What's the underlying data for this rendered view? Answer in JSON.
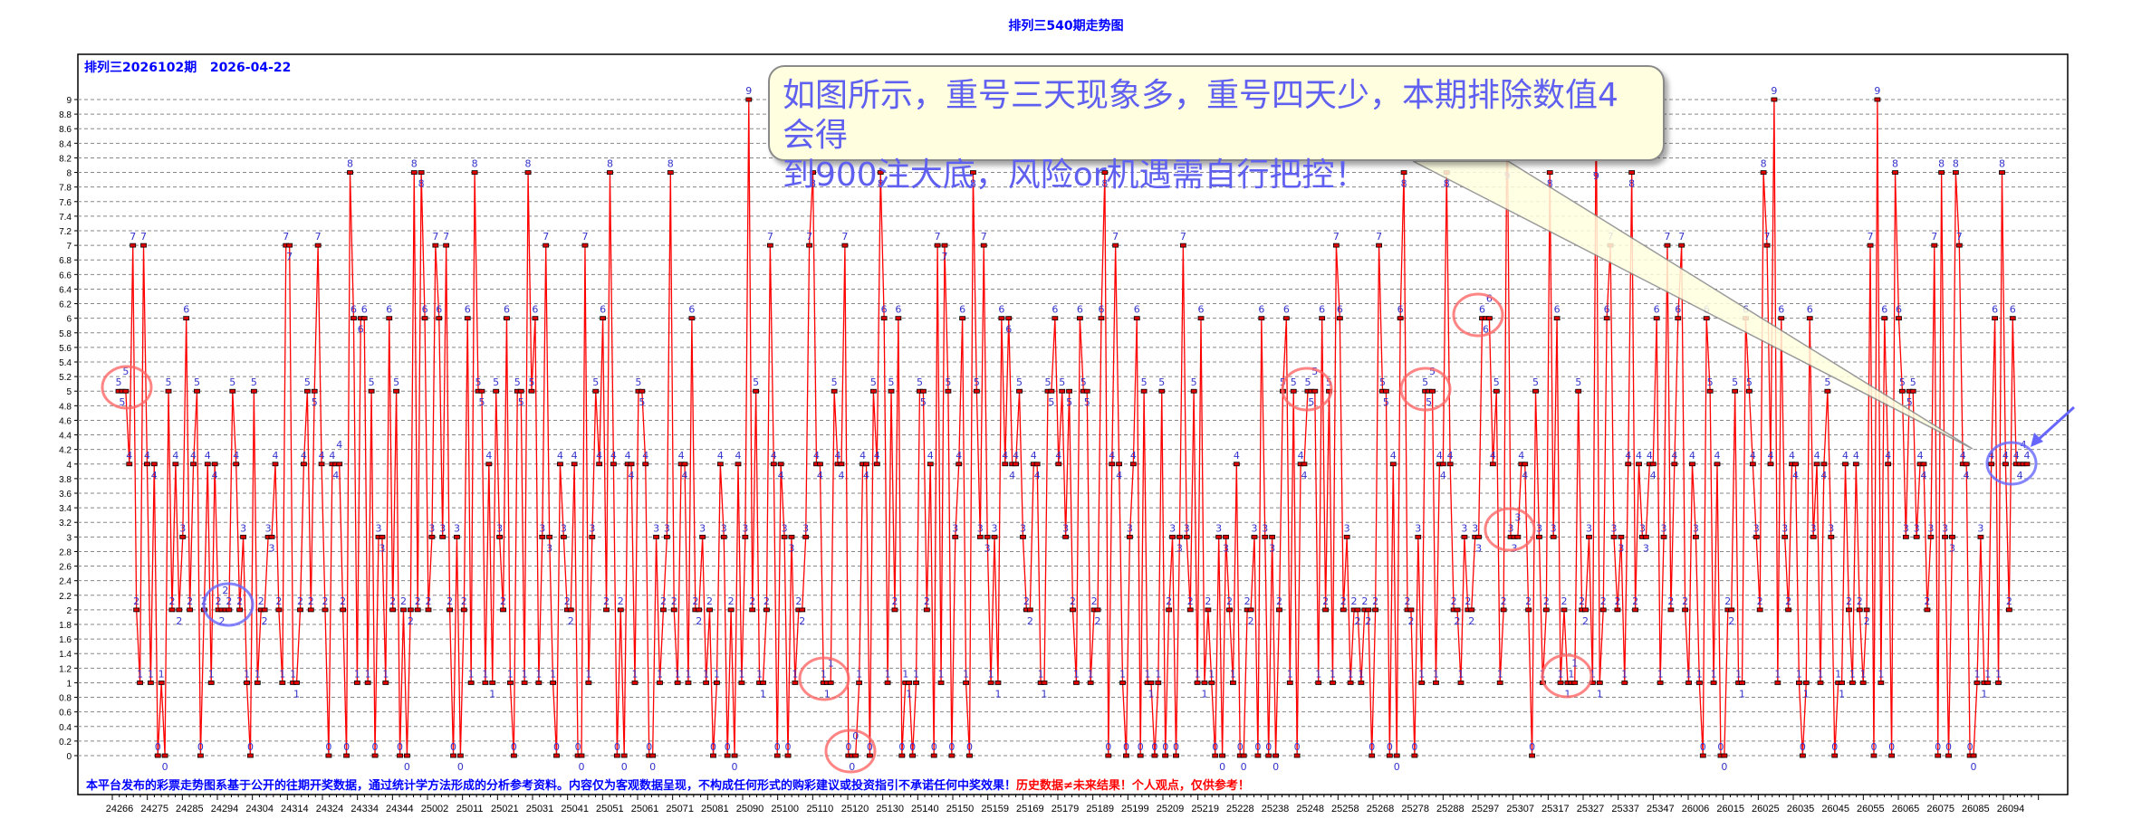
{
  "title": "排列三540期走势图",
  "header": {
    "issue": "排列三2026102期",
    "date": "2026-04-22"
  },
  "callout": {
    "text_line1": "如图所示，重号三天现象多，重号四天少，本期排除数值4会得",
    "text_line2": "到900注大底，风险or机遇需自行把控！"
  },
  "footnote": {
    "blue": "本平台发布的彩票走势图系基于公开的往期开奖数据，通过统计学方法形成的分析参考资料。内容仅为客观数据呈现，不构成任何形式的购彩建议或投资指引不承诺任何中奖效果！",
    "red": "历史数据≠未来结果！个人观点，仅供参考！"
  },
  "colors": {
    "line": "#ff0000",
    "marker": "#e00000",
    "label": "#3333cc",
    "title": "#0000ff",
    "grid": "#888888",
    "highlight_red": "#ff6666",
    "highlight_blue": "#6666ff"
  },
  "chart_data": {
    "type": "line",
    "title": "排列三540期走势图",
    "ylim": [
      0,
      9
    ],
    "y_ticks_step": 0.2,
    "grid": true,
    "point_labels": true,
    "x_tick_labels": [
      "24266",
      "24275",
      "24285",
      "24294",
      "24304",
      "24314",
      "24324",
      "24334",
      "24344",
      "25002",
      "25011",
      "25021",
      "25031",
      "25041",
      "25051",
      "25061",
      "25071",
      "25081",
      "25090",
      "25100",
      "25110",
      "25120",
      "25130",
      "25140",
      "25150",
      "25159",
      "25169",
      "25179",
      "25189",
      "25199",
      "25209",
      "25219",
      "25228",
      "25238",
      "25248",
      "25258",
      "25268",
      "25278",
      "25288",
      "25297",
      "25307",
      "25317",
      "25327",
      "25337",
      "25347",
      "26006",
      "26015",
      "26025",
      "26035",
      "26045",
      "26055",
      "26065",
      "26075",
      "26085",
      "26094"
    ],
    "values": [
      5,
      5,
      5,
      4,
      7,
      2,
      1,
      7,
      4,
      1,
      4,
      0,
      1,
      0,
      5,
      2,
      4,
      2,
      3,
      6,
      2,
      4,
      5,
      0,
      2,
      4,
      1,
      4,
      2,
      2,
      2,
      2,
      5,
      4,
      2,
      3,
      1,
      0,
      5,
      1,
      2,
      2,
      3,
      3,
      4,
      2,
      1,
      7,
      7,
      1,
      1,
      2,
      4,
      5,
      2,
      5,
      7,
      4,
      2,
      0,
      4,
      4,
      4,
      2,
      0,
      8,
      6,
      1,
      6,
      6,
      1,
      5,
      0,
      3,
      3,
      1,
      6,
      2,
      5,
      0,
      2,
      0,
      2,
      8,
      2,
      8,
      6,
      2,
      3,
      7,
      6,
      3,
      7,
      2,
      0,
      3,
      0,
      2,
      6,
      1,
      8,
      5,
      5,
      1,
      4,
      1,
      5,
      3,
      2,
      6,
      1,
      0,
      5,
      5,
      1,
      8,
      5,
      6,
      1,
      3,
      7,
      3,
      1,
      0,
      4,
      3,
      2,
      2,
      4,
      0,
      0,
      7,
      1,
      3,
      5,
      4,
      6,
      2,
      8,
      4,
      0,
      2,
      0,
      4,
      4,
      1,
      5,
      5,
      4,
      0,
      0,
      3,
      1,
      2,
      3,
      8,
      2,
      1,
      4,
      4,
      1,
      6,
      2,
      2,
      3,
      1,
      2,
      0,
      1,
      4,
      3,
      0,
      2,
      0,
      4,
      1,
      3,
      9,
      2,
      5,
      1,
      1,
      2,
      7,
      4,
      0,
      4,
      3,
      0,
      3,
      1,
      2,
      2,
      3,
      7,
      8,
      4,
      4,
      1,
      1,
      1,
      5,
      4,
      4,
      7,
      0,
      0,
      0,
      1,
      4,
      4,
      0,
      5,
      4,
      8,
      6,
      1,
      5,
      2,
      6,
      0,
      1,
      1,
      0,
      1,
      5,
      5,
      2,
      4,
      0,
      7,
      1,
      7,
      5,
      0,
      3,
      4,
      6,
      1,
      0,
      8,
      5,
      3,
      7,
      3,
      1,
      3,
      1,
      6,
      4,
      6,
      4,
      4,
      5,
      3,
      2,
      2,
      4,
      4,
      1,
      1,
      5,
      5,
      6,
      4,
      5,
      3,
      5,
      2,
      1,
      6,
      5,
      5,
      1,
      2,
      2,
      6,
      8,
      0,
      4,
      7,
      4,
      1,
      0,
      3,
      4,
      6,
      0,
      5,
      1,
      1,
      0,
      1,
      5,
      0,
      2,
      3,
      0,
      3,
      7,
      3,
      2,
      5,
      1,
      6,
      1,
      2,
      1,
      0,
      3,
      0,
      3,
      2,
      1,
      4,
      0,
      0,
      2,
      2,
      3,
      0,
      6,
      3,
      0,
      3,
      0,
      2,
      5,
      6,
      1,
      5,
      0,
      4,
      4,
      5,
      5,
      5,
      1,
      6,
      2,
      5,
      1,
      7,
      6,
      2,
      3,
      1,
      2,
      2,
      1,
      2,
      2,
      0,
      2,
      7,
      5,
      5,
      0,
      4,
      0,
      6,
      8,
      2,
      2,
      0,
      3,
      1,
      5,
      5,
      5,
      1,
      4,
      4,
      8,
      4,
      2,
      2,
      1,
      3,
      2,
      2,
      3,
      3,
      6,
      6,
      6,
      4,
      5,
      1,
      2,
      9,
      3,
      3,
      3,
      4,
      4,
      2,
      0,
      5,
      3,
      1,
      2,
      8,
      3,
      6,
      1,
      2,
      1,
      1,
      1,
      5,
      2,
      2,
      3,
      1,
      9,
      1,
      2,
      6,
      7,
      3,
      2,
      3,
      1,
      4,
      8,
      2,
      4,
      3,
      3,
      4,
      4,
      6,
      1,
      3,
      7,
      2,
      4,
      6,
      7,
      2,
      1,
      4,
      3,
      1,
      0,
      6,
      5,
      1,
      4,
      0,
      0,
      2,
      2,
      5,
      1,
      1,
      6,
      5,
      4,
      3,
      2,
      8,
      7,
      4,
      9,
      1,
      6,
      3,
      2,
      4,
      4,
      1,
      0,
      1,
      6,
      3,
      4,
      1,
      4,
      5,
      3,
      0,
      1,
      1,
      4,
      2,
      1,
      4,
      2,
      1,
      2,
      7,
      0,
      9,
      1,
      6,
      4,
      0,
      8,
      6,
      5,
      3,
      5,
      5,
      3,
      4,
      4,
      2,
      3,
      7,
      0,
      8,
      3,
      0,
      3,
      8,
      7,
      4,
      4,
      0,
      0,
      1,
      3,
      1,
      1,
      4,
      6,
      1,
      8,
      4,
      2,
      6,
      4,
      4,
      4,
      4
    ]
  }
}
